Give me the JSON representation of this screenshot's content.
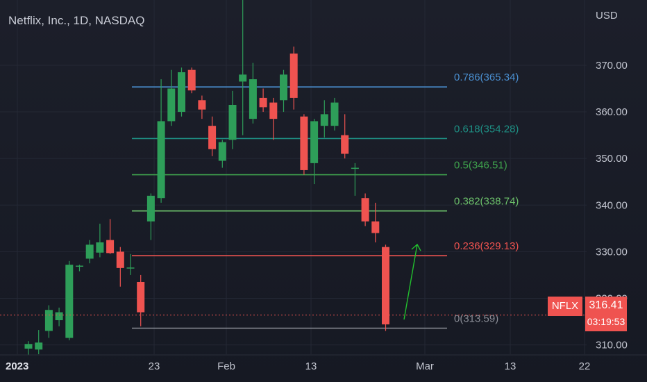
{
  "header": {
    "title": "Netflix, Inc., 1D, NASDAQ",
    "currency": "USD"
  },
  "price_badge": {
    "ticker": "NFLX",
    "price": "316.41",
    "countdown": "03:19:53"
  },
  "colors": {
    "background": "#181b25",
    "up": "#26a69a",
    "up_candle": "#2e9e59",
    "down": "#ef5350",
    "axis_text": "#c2c5cf",
    "grid": "#242835",
    "arrow": "#22c02e"
  },
  "chart_data": {
    "type": "candlestick",
    "title": "Netflix, Inc., 1D, NASDAQ",
    "ylabel": "USD",
    "ylim": [
      308,
      384
    ],
    "y_ticks": [
      "310.00",
      "320.00",
      "330.00",
      "340.00",
      "350.00",
      "360.00",
      "370.00"
    ],
    "x_tick_labels": [
      "2023",
      "23",
      "Feb",
      "13",
      "Mar",
      "13",
      "22"
    ],
    "grid": true,
    "candles": [
      {
        "o": 309.2,
        "h": 310.8,
        "l": 307.9,
        "c": 310.2
      },
      {
        "o": 309.0,
        "h": 313.2,
        "l": 308.0,
        "c": 310.5
      },
      {
        "o": 313.0,
        "h": 318.5,
        "l": 311.5,
        "c": 317.5
      },
      {
        "o": 315.3,
        "h": 318.0,
        "l": 314.0,
        "c": 317.0
      },
      {
        "o": 311.5,
        "h": 328.0,
        "l": 311.0,
        "c": 327.2
      },
      {
        "o": 326.9,
        "h": 327.2,
        "l": 325.8,
        "c": 327.0
      },
      {
        "o": 328.5,
        "h": 332.5,
        "l": 327.5,
        "c": 331.5
      },
      {
        "o": 329.8,
        "h": 336.0,
        "l": 328.8,
        "c": 332.0
      },
      {
        "o": 332.5,
        "h": 337.0,
        "l": 329.5,
        "c": 329.7
      },
      {
        "o": 330.0,
        "h": 331.0,
        "l": 322.5,
        "c": 326.5
      },
      {
        "o": 326.5,
        "h": 329.5,
        "l": 325.0,
        "c": 326.6
      },
      {
        "o": 323.5,
        "h": 325.0,
        "l": 314.0,
        "c": 317.0
      },
      {
        "o": 336.5,
        "h": 342.5,
        "l": 332.5,
        "c": 342.0
      },
      {
        "o": 341.5,
        "h": 367.0,
        "l": 340.5,
        "c": 358.0
      },
      {
        "o": 358.0,
        "h": 369.0,
        "l": 357.0,
        "c": 365.0
      },
      {
        "o": 360.0,
        "h": 369.5,
        "l": 359.0,
        "c": 368.5
      },
      {
        "o": 369.0,
        "h": 369.5,
        "l": 364.0,
        "c": 364.6
      },
      {
        "o": 362.5,
        "h": 363.5,
        "l": 358.5,
        "c": 360.5
      },
      {
        "o": 357.0,
        "h": 359.0,
        "l": 350.5,
        "c": 352.0
      },
      {
        "o": 349.5,
        "h": 354.0,
        "l": 348.0,
        "c": 353.5
      },
      {
        "o": 354.0,
        "h": 364.5,
        "l": 352.0,
        "c": 361.5
      },
      {
        "o": 366.5,
        "h": 384.0,
        "l": 355.0,
        "c": 368.0
      },
      {
        "o": 358.5,
        "h": 370.5,
        "l": 357.5,
        "c": 367.0
      },
      {
        "o": 363.0,
        "h": 365.0,
        "l": 360.0,
        "c": 361.0
      },
      {
        "o": 362.0,
        "h": 363.0,
        "l": 354.0,
        "c": 358.5
      },
      {
        "o": 362.5,
        "h": 369.0,
        "l": 360.0,
        "c": 368.0
      },
      {
        "o": 372.5,
        "h": 374.0,
        "l": 360.5,
        "c": 363.0
      },
      {
        "o": 359.0,
        "h": 359.5,
        "l": 346.5,
        "c": 347.5
      },
      {
        "o": 349.0,
        "h": 358.5,
        "l": 344.5,
        "c": 358.0
      },
      {
        "o": 357.0,
        "h": 362.5,
        "l": 354.5,
        "c": 359.5
      },
      {
        "o": 357.0,
        "h": 363.0,
        "l": 356.0,
        "c": 362.0
      },
      {
        "o": 355.0,
        "h": 359.5,
        "l": 350.0,
        "c": 351.0
      },
      {
        "o": 348.0,
        "h": 349.0,
        "l": 342.0,
        "c": 348.0
      },
      {
        "o": 341.5,
        "h": 342.5,
        "l": 335.5,
        "c": 336.5
      },
      {
        "o": 336.5,
        "h": 340.5,
        "l": 332.0,
        "c": 334.0
      },
      {
        "o": 331.0,
        "h": 331.5,
        "l": 313.0,
        "c": 314.4
      }
    ],
    "fib_levels": [
      {
        "label": "0.786(365.34)",
        "value": 365.34,
        "color": "#4a8fd0"
      },
      {
        "label": "0.618(354.28)",
        "value": 354.28,
        "color": "#1e8f84"
      },
      {
        "label": "0.5(346.51)",
        "value": 346.51,
        "color": "#3fa34d"
      },
      {
        "label": "0.382(338.74)",
        "value": 338.74,
        "color": "#6cc06a"
      },
      {
        "label": "0.236(329.13)",
        "value": 329.13,
        "color": "#ef5350"
      },
      {
        "label": "0(313.59)",
        "value": 313.59,
        "color": "#8a8d96"
      }
    ],
    "last_price": 316.41
  }
}
